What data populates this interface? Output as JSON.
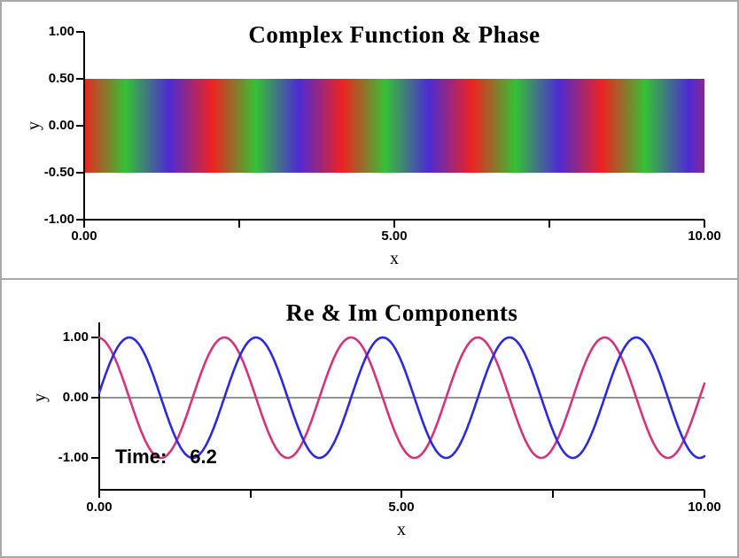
{
  "figure": {
    "frame_color": "#a8a8a8",
    "background": "#ffffff"
  },
  "chart_data": [
    {
      "type": "heatmap",
      "title": "Complex Function & Phase",
      "xlabel": "x",
      "ylabel": "y",
      "xlim": [
        0,
        10
      ],
      "ylim": [
        -1,
        1
      ],
      "x_tick_labels": [
        "0.00",
        "5.00",
        "10.00"
      ],
      "x_minor_ticks": [
        2.5,
        7.5
      ],
      "y_tick_labels": [
        "1.00",
        "0.50",
        "0.00",
        "-0.50",
        "-1.00"
      ],
      "grid": false,
      "legend": false,
      "band": {
        "description": "Horizontal band spanning y=-0.5..0.5 colored by complex phase arg(psi)=k*x-omega*t; hue cycles red -> green -> blue -> red along x",
        "y_min": -0.5,
        "y_max": 0.5,
        "k": 3,
        "omega_t": 6.2,
        "wavelength_x": 2.094,
        "cycles_visible": 4.77,
        "colors": [
          "#ee2222",
          "#35c135",
          "#4d2bd4"
        ]
      }
    },
    {
      "type": "line",
      "title": "Re & Im Components",
      "xlabel": "x",
      "ylabel": "y",
      "xlim": [
        0,
        10
      ],
      "ylim": [
        -1,
        1
      ],
      "x_tick_labels": [
        "0.00",
        "5.00",
        "10.00"
      ],
      "x_minor_ticks": [
        2.5,
        7.5
      ],
      "y_tick_labels": [
        "1.00",
        "0.00",
        "-1.00"
      ],
      "zero_line": true,
      "grid": false,
      "legend": false,
      "series": [
        {
          "id": "re",
          "name": "Re psi = cos(3x - 6.2)",
          "fn": "cos",
          "k": 3,
          "phase": -6.2,
          "amplitude": 1,
          "color": "#d8327c",
          "peaks_x": [
            2.07,
            4.16,
            6.26,
            8.35
          ],
          "value_at_x0": 0.997
        },
        {
          "id": "im",
          "name": "Im psi = sin(3x - 6.2)",
          "fn": "sin",
          "k": 3,
          "phase": -6.2,
          "amplitude": 1,
          "color": "#2a2ae6",
          "peaks_x": [
            0.5,
            2.59,
            4.68,
            6.78,
            8.87
          ],
          "value_at_x0": 0.083
        }
      ],
      "annotation": {
        "label": "Time:",
        "value": "6.2"
      }
    }
  ]
}
